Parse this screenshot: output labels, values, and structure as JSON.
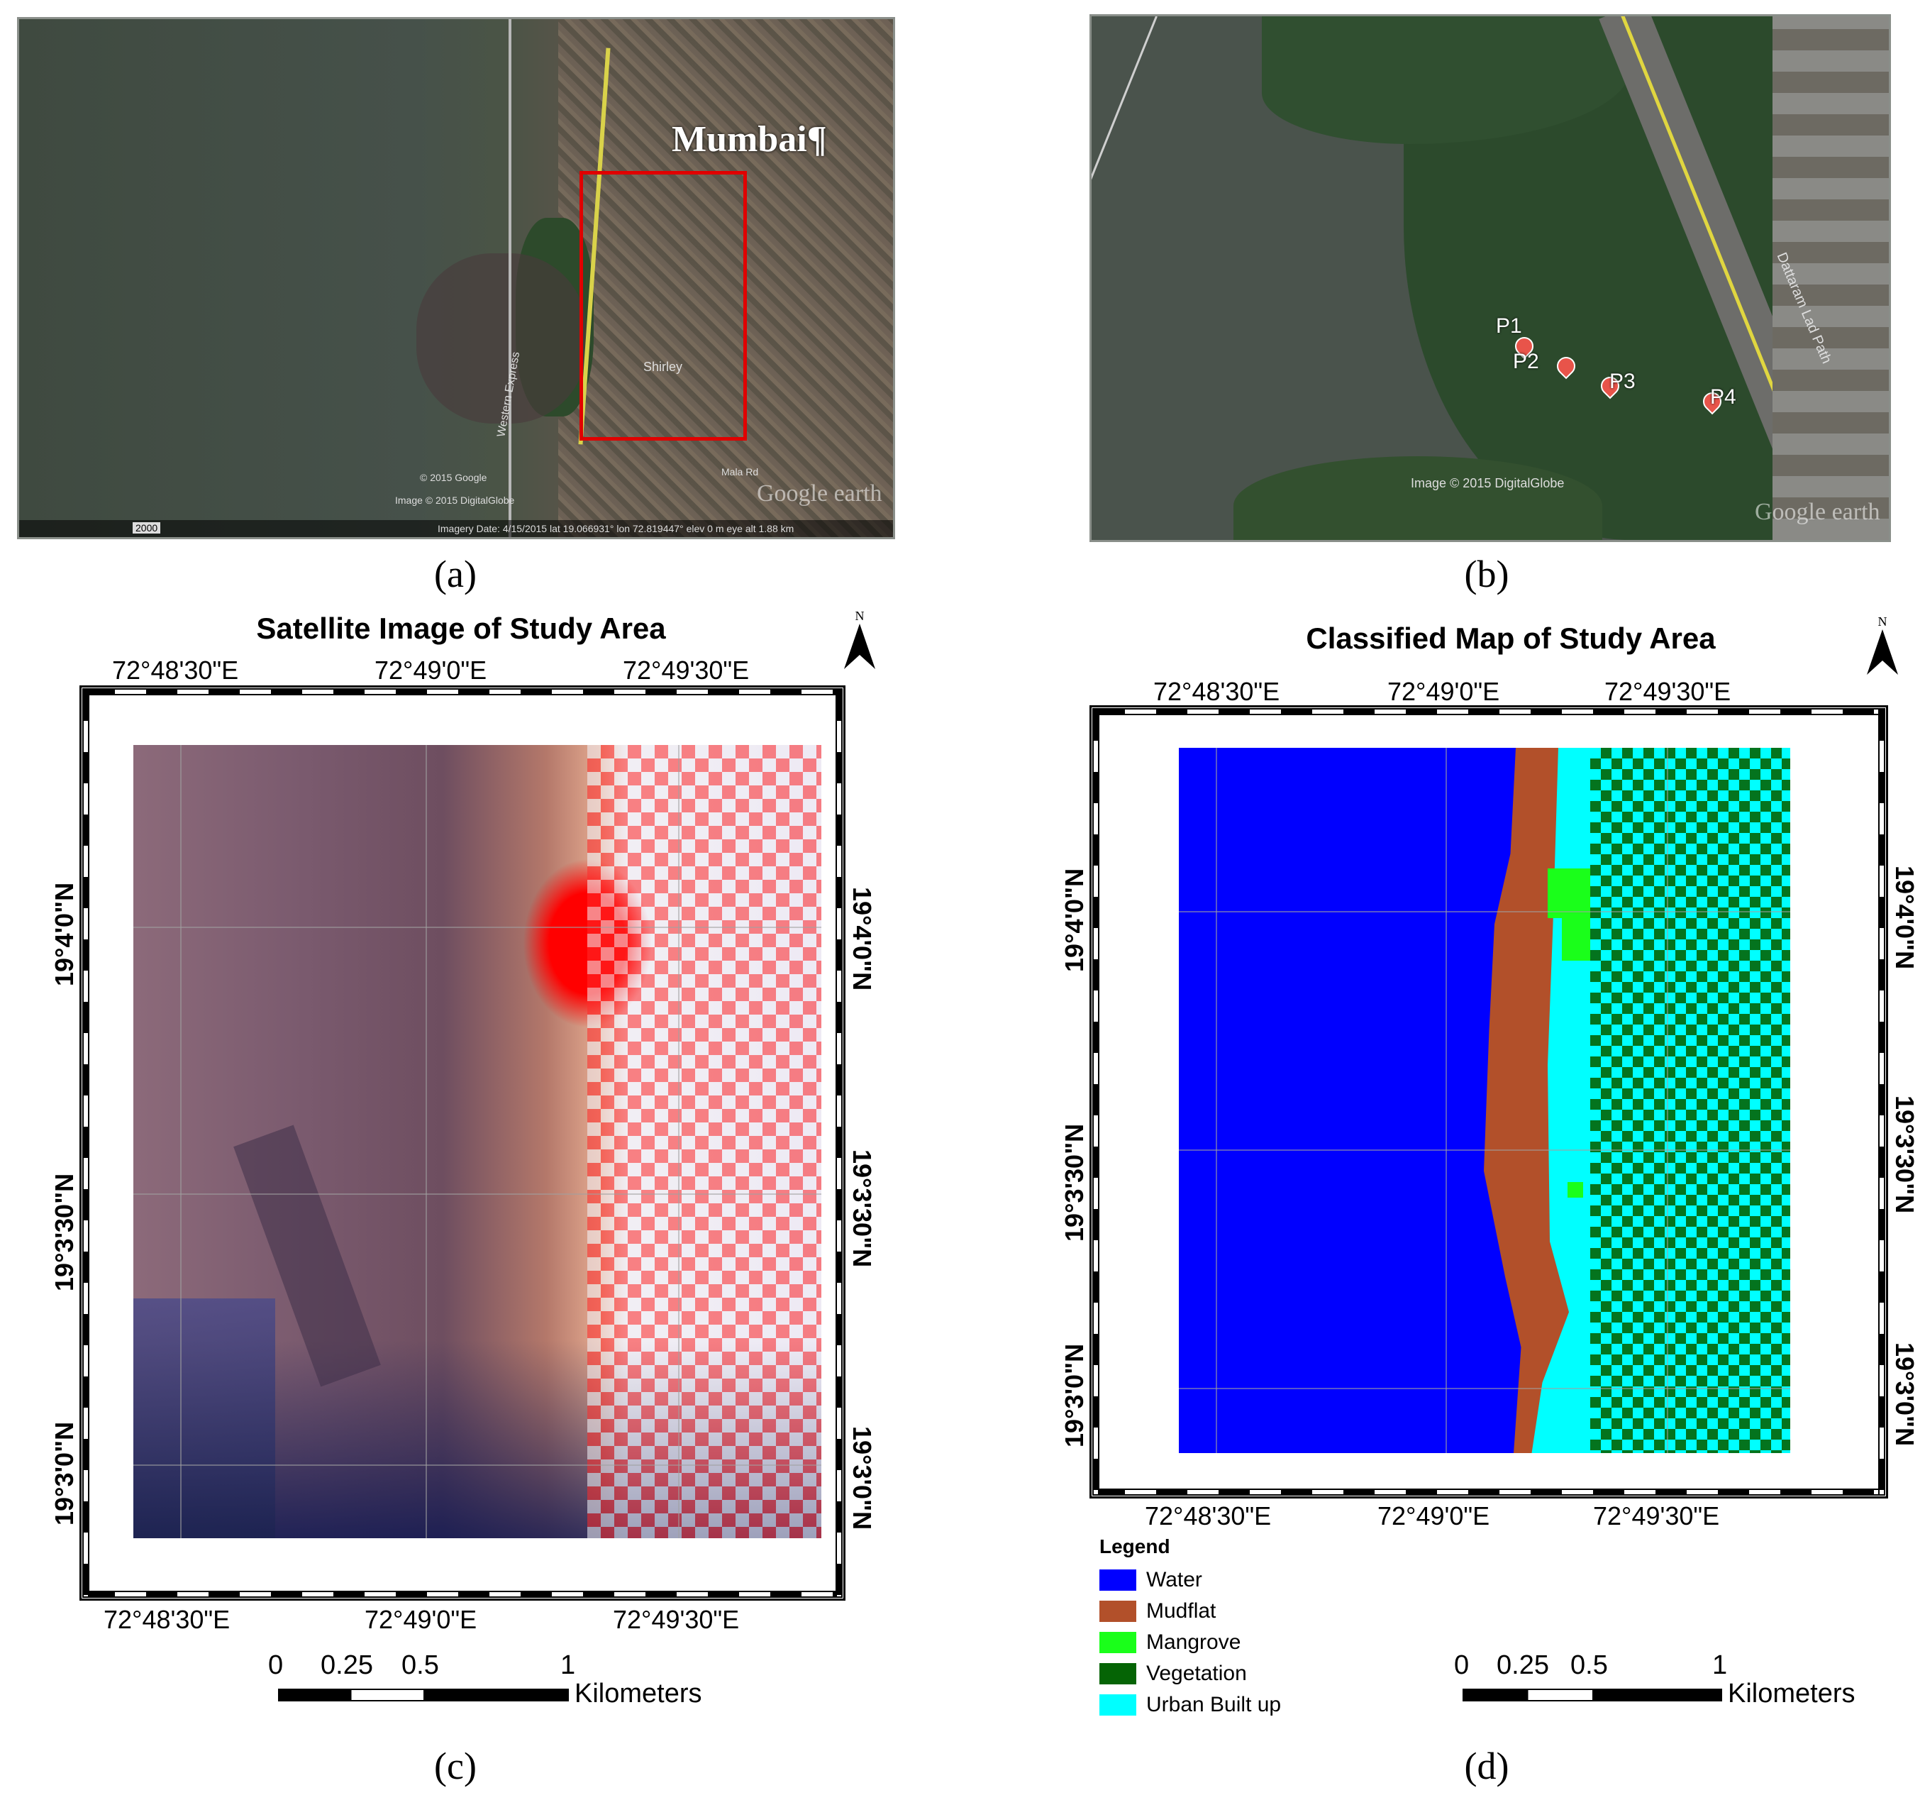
{
  "panels": {
    "a": {
      "label": "(a)",
      "place": "Mumbai¶",
      "streets": [
        "Shirley",
        "Western Express",
        "Mala Rd"
      ],
      "copyright": "© 2015 Google",
      "imagery": "Image © 2015 DigitalGlobe",
      "brand": "Google earth",
      "status": "Imagery Date: 4/15/2015    lat 19.066931°  lon 72.819447°  elev 0 m   eye alt 1.88 km",
      "year": "2000"
    },
    "b": {
      "label": "(b)",
      "road": "Dattaram Lad Path",
      "imagery": "Image © 2015 DigitalGlobe",
      "brand": "Google earth",
      "points": [
        "P1",
        "P2",
        "P3",
        "P4"
      ]
    },
    "c": {
      "label": "(c)",
      "title": "Satellite Image of Study Area",
      "north": "N",
      "lon_labels": [
        "72°48'30\"E",
        "72°49'0\"E",
        "72°49'30\"E"
      ],
      "lat_labels": [
        "19°4'0\"N",
        "19°3'30\"N",
        "19°3'0\"N"
      ]
    },
    "d": {
      "label": "(d)",
      "title": "Classified Map of Study Area",
      "north": "N",
      "lon_labels": [
        "72°48'30\"E",
        "72°49'0\"E",
        "72°49'30\"E"
      ],
      "lat_labels": [
        "19°4'0\"N",
        "19°3'30\"N",
        "19°3'0\"N"
      ],
      "legend_title": "Legend",
      "legend": [
        {
          "label": "Water",
          "color": "#0000ff"
        },
        {
          "label": "Mudflat",
          "color": "#b2502a"
        },
        {
          "label": "Mangrove",
          "color": "#1aff1a"
        },
        {
          "label": "Vegetation",
          "color": "#056405"
        },
        {
          "label": "Urban Built up",
          "color": "#00ffff"
        }
      ]
    }
  },
  "scale": {
    "ticks": [
      "0",
      "0.25",
      "0.5",
      "1"
    ],
    "unit": "Kilometers"
  }
}
